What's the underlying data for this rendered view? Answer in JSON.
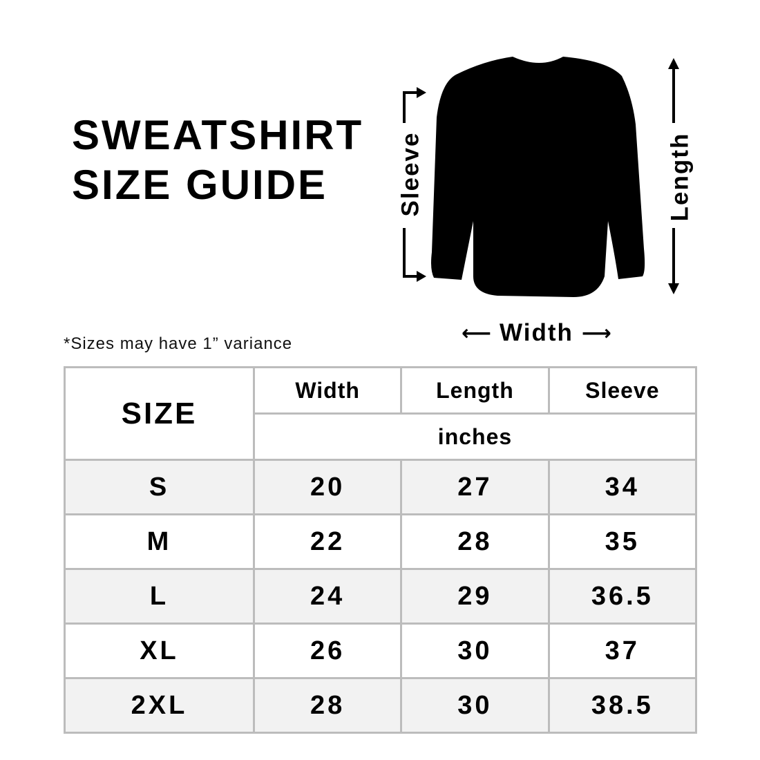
{
  "title_line1": "SWEATSHIRT",
  "title_line2": "SIZE GUIDE",
  "note": "*Sizes may have 1” variance",
  "diagram": {
    "sleeve": "Sleeve",
    "length": "Length",
    "width": "Width",
    "garment_color": "#000000"
  },
  "table": {
    "size_header": "SIZE",
    "columns": [
      "Width",
      "Length",
      "Sleeve"
    ],
    "unit": "inches",
    "rows": [
      {
        "size": "S",
        "width": "20",
        "length": "27",
        "sleeve": "34"
      },
      {
        "size": "M",
        "width": "22",
        "length": "28",
        "sleeve": "35"
      },
      {
        "size": "L",
        "width": "24",
        "length": "29",
        "sleeve": "36.5"
      },
      {
        "size": "XL",
        "width": "26",
        "length": "30",
        "sleeve": "37"
      },
      {
        "size": "2XL",
        "width": "28",
        "length": "30",
        "sleeve": "38.5"
      }
    ]
  }
}
